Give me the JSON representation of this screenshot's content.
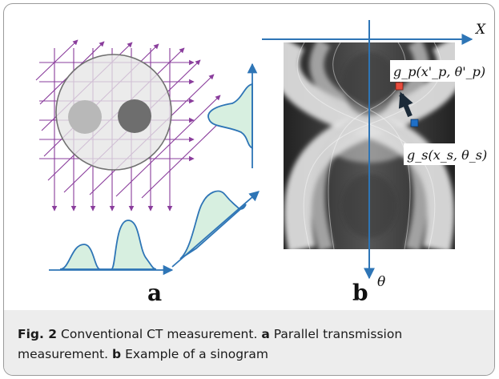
{
  "panels": {
    "a": {
      "label": "a"
    },
    "b": {
      "label": "b",
      "axis_x_label": "X",
      "axis_theta_label": "θ",
      "point_p_label": "g_p(x'_p, θ'_p)",
      "point_s_label": "g_s(x_s, θ_s)"
    }
  },
  "caption": {
    "fig_label": "Fig. 2",
    "title": "Conventional CT measurement.",
    "part_a_letter": "a",
    "part_a_text": "Parallel transmission measurement.",
    "part_b_letter": "b",
    "part_b_text": "Example of a sinogram"
  },
  "colors": {
    "ray": "#8a3d9c",
    "axis": "#2e75b6",
    "profile_fill": "#d7efe0",
    "profile_stroke": "#2e75b6",
    "point_p": "#e84c3d",
    "point_s": "#1f6fc6",
    "caption_bg": "#ededed"
  }
}
